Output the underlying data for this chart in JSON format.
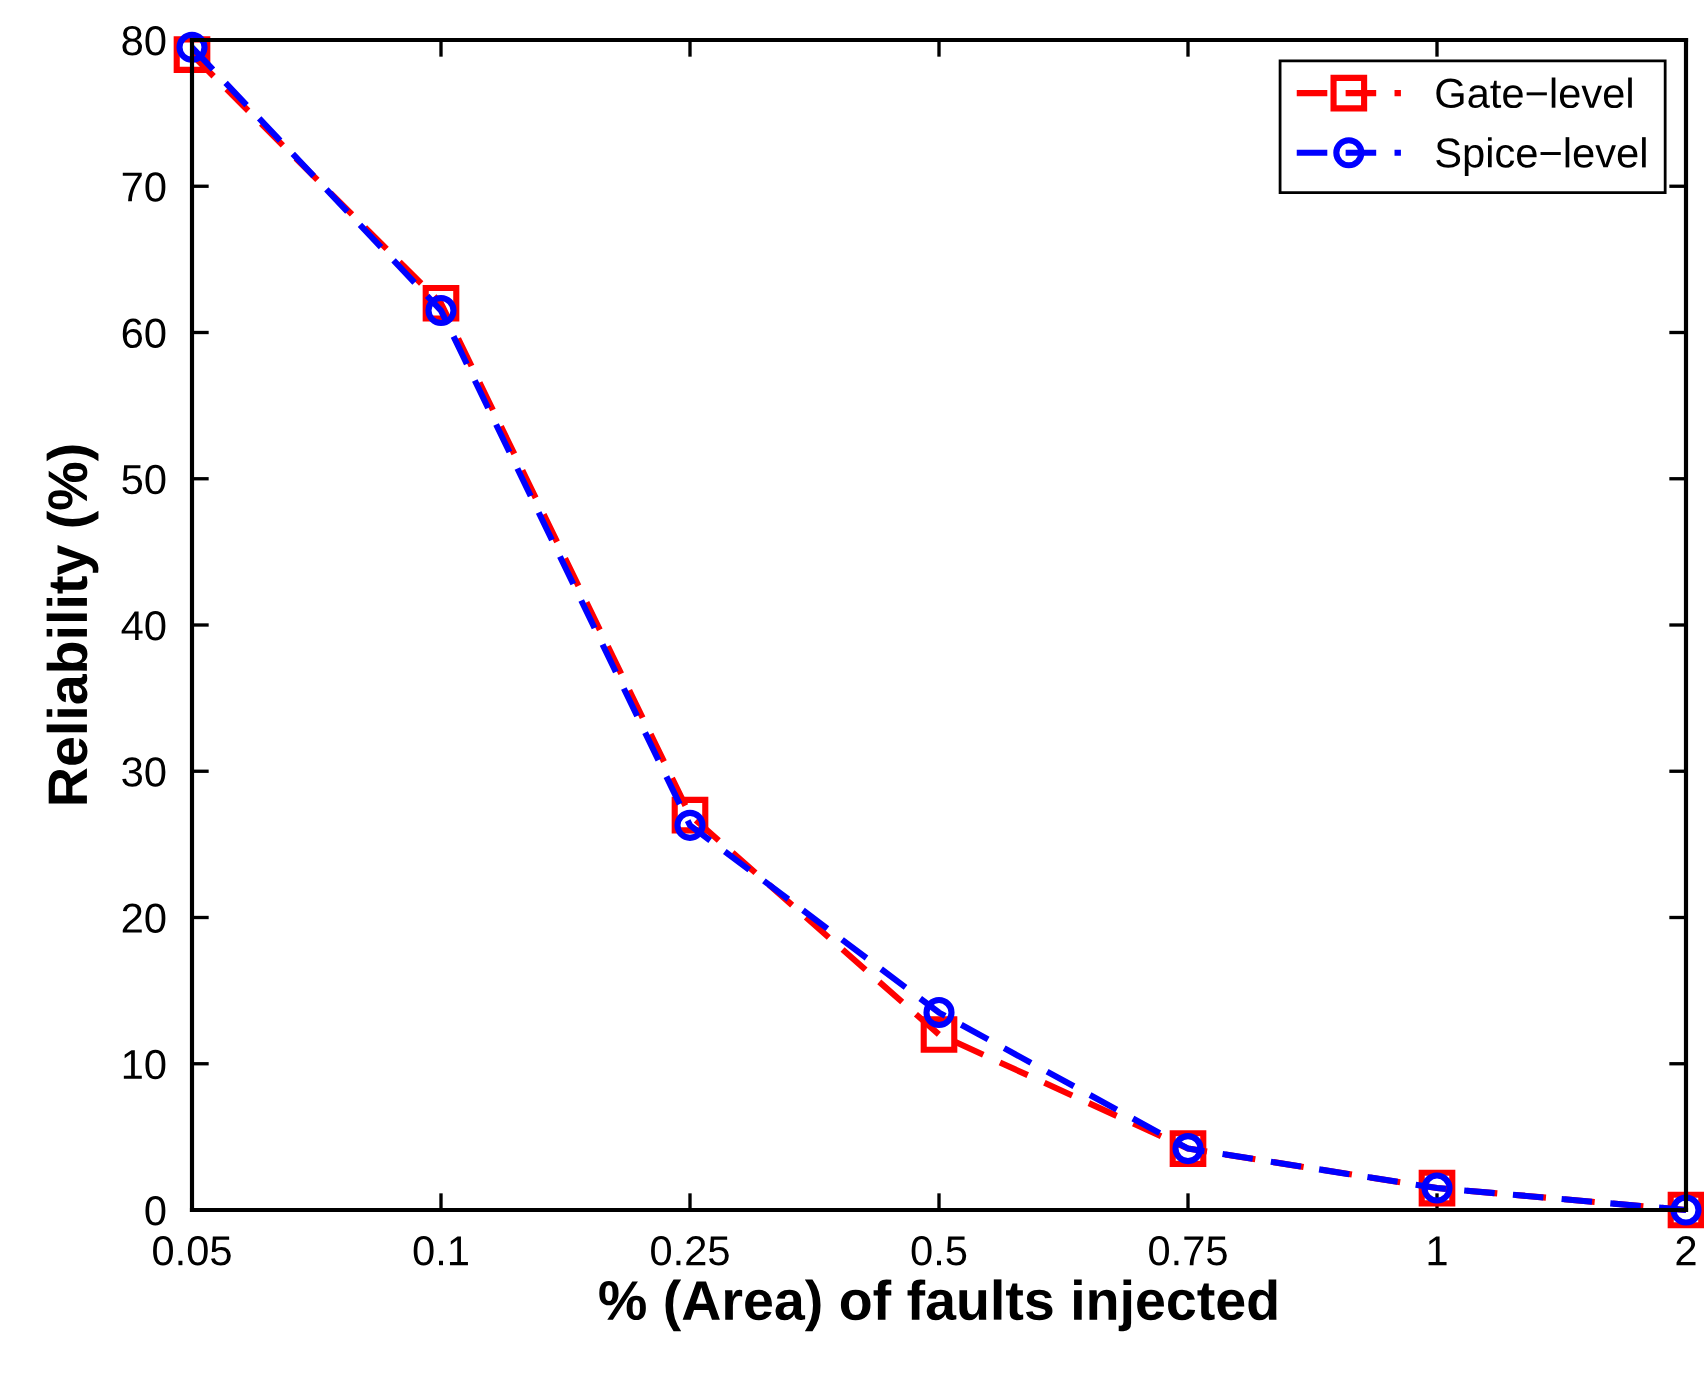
{
  "chart_data": {
    "type": "line",
    "xlabel": "% (Area) of faults injected",
    "ylabel": "Reliability (%)",
    "categories": [
      "0.05",
      "0.1",
      "0.25",
      "0.5",
      "0.75",
      "1",
      "2"
    ],
    "series": [
      {
        "name": "Gate−level",
        "color": "#ff0000",
        "marker": "square",
        "values": [
          79,
          62,
          27,
          12,
          4.2,
          1.5,
          0
        ]
      },
      {
        "name": "Spice−level",
        "color": "#0000ff",
        "marker": "circle",
        "values": [
          79.5,
          61.5,
          26.3,
          13.5,
          4.2,
          1.5,
          0
        ]
      }
    ],
    "line_style": "dashed",
    "ylim": [
      0,
      80
    ],
    "yticks": [
      0,
      10,
      20,
      30,
      40,
      50,
      60,
      70,
      80
    ],
    "grid": false,
    "legend": "top right"
  }
}
